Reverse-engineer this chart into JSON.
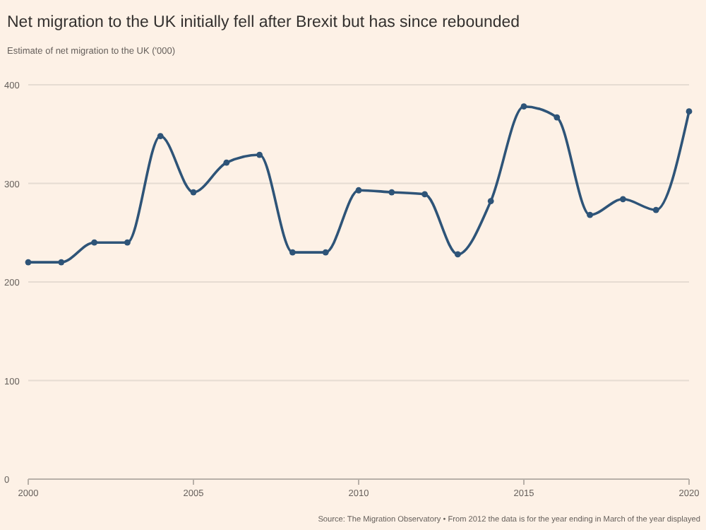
{
  "chart_data": {
    "type": "line",
    "title": "Net migration to the UK initially fell after Brexit but has since rebounded",
    "subtitle": "Estimate of net migration to the UK ('000)",
    "x": [
      2000,
      2001,
      2002,
      2003,
      2004,
      2005,
      2006,
      2007,
      2008,
      2009,
      2010,
      2011,
      2012,
      2013,
      2014,
      2015,
      2016,
      2017,
      2018,
      2019,
      2020
    ],
    "series": [
      {
        "color": "#2e5478",
        "values": [
          220,
          220,
          240,
          240,
          348,
          291,
          321,
          329,
          230,
          230,
          293,
          291,
          289,
          228,
          282,
          378,
          367,
          268,
          284,
          273,
          373
        ]
      }
    ],
    "xlim": [
      2000,
      2020
    ],
    "xticks": [
      2000,
      2005,
      2010,
      2015,
      2020
    ],
    "ylim": [
      0,
      400
    ],
    "yticks": [
      0,
      100,
      200,
      300,
      400
    ],
    "grid": "y",
    "marker": "circle",
    "annotations": [
      "Source: The Migration Observatory • From 2012 the data is for the year ending in March of the year displayed"
    ]
  }
}
